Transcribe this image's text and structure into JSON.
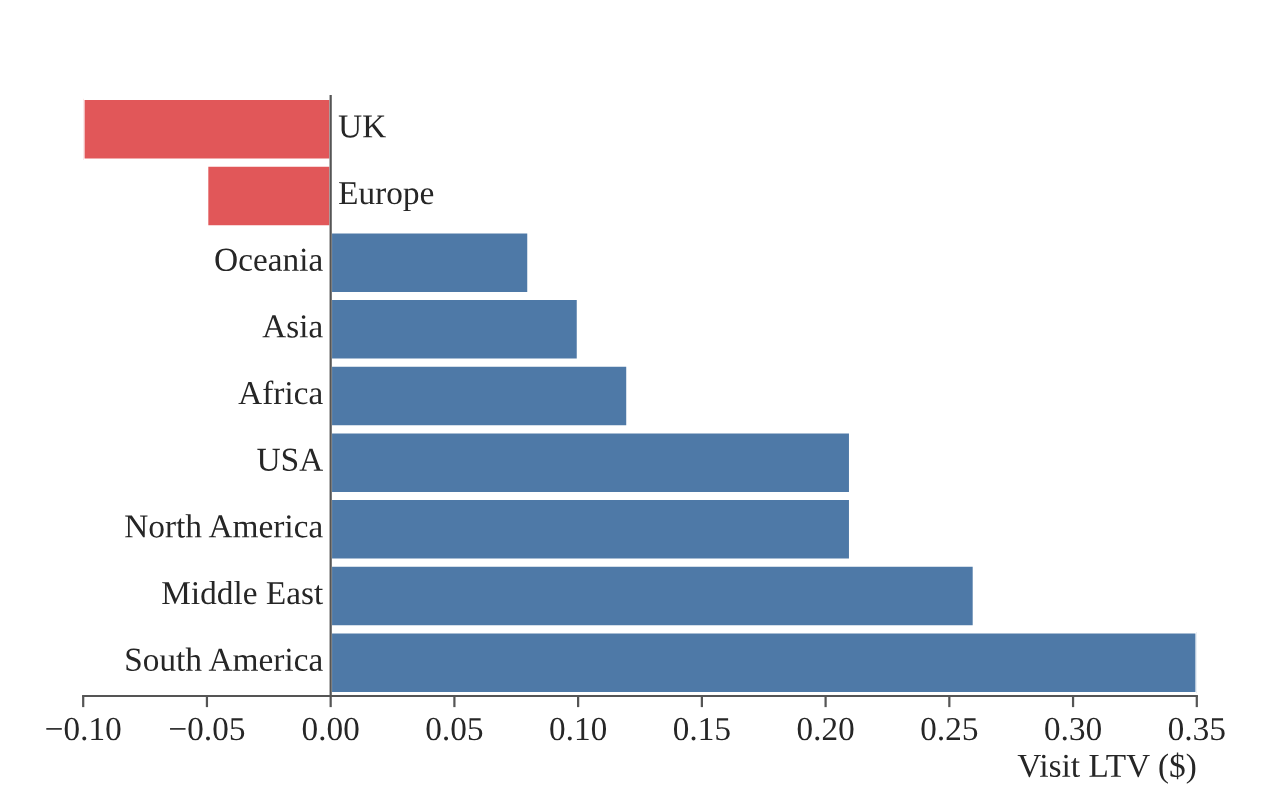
{
  "chart_data": {
    "type": "bar",
    "orientation": "horizontal",
    "xlabel": "Visit LTV ($)",
    "categories": [
      "UK",
      "Europe",
      "Oceania",
      "Asia",
      "Africa",
      "USA",
      "North America",
      "Middle East",
      "South America"
    ],
    "values": [
      -0.1,
      -0.05,
      0.08,
      0.1,
      0.12,
      0.21,
      0.21,
      0.26,
      0.35
    ],
    "colors": [
      "#e15759",
      "#e15759",
      "#4e79a7",
      "#4e79a7",
      "#4e79a7",
      "#4e79a7",
      "#4e79a7",
      "#4e79a7",
      "#4e79a7"
    ],
    "xlim": [
      -0.1,
      0.35
    ],
    "xticks": [
      {
        "value": -0.1,
        "label": "−0.10"
      },
      {
        "value": -0.05,
        "label": "−0.05"
      },
      {
        "value": 0,
        "label": "0.00"
      },
      {
        "value": 0.05,
        "label": "0.05"
      },
      {
        "value": 0.1,
        "label": "0.10"
      },
      {
        "value": 0.15,
        "label": "0.15"
      },
      {
        "value": 0.2,
        "label": "0.20"
      },
      {
        "value": 0.25,
        "label": "0.25"
      },
      {
        "value": 0.3,
        "label": "0.30"
      },
      {
        "value": 0.35,
        "label": "0.35"
      }
    ],
    "grid": false
  }
}
